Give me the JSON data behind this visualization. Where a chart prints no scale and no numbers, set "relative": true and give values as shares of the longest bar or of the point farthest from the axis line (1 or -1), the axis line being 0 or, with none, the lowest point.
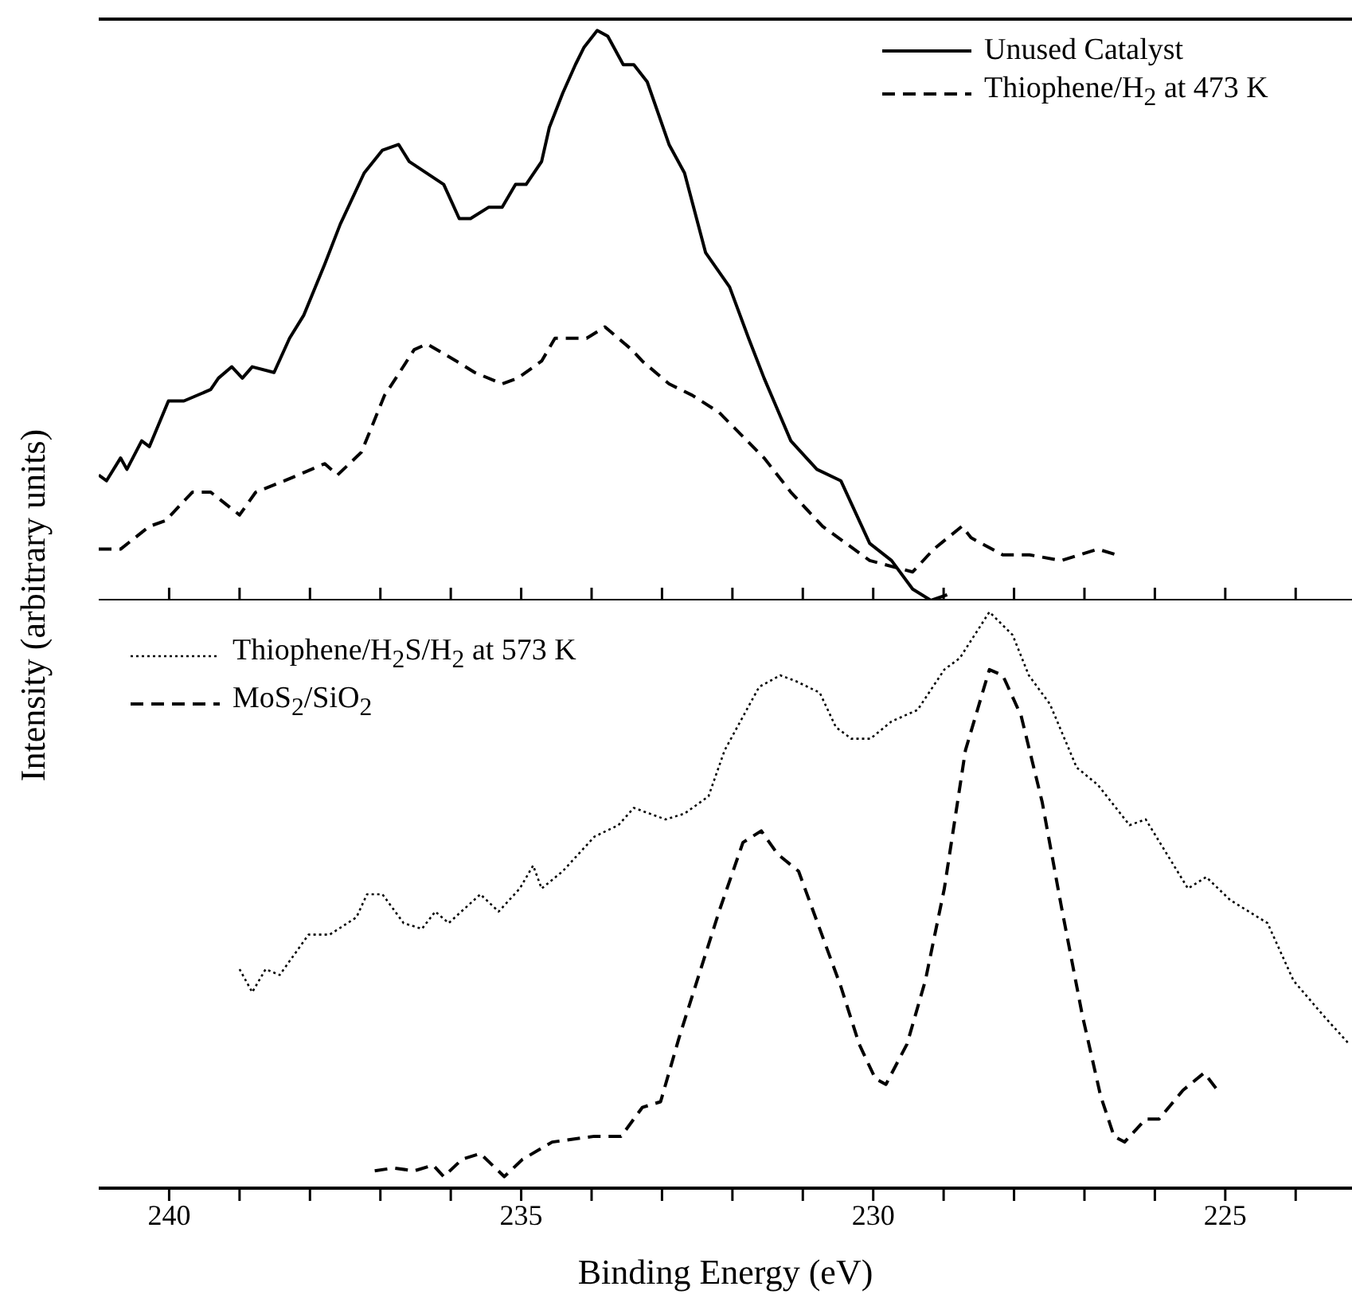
{
  "chart_data": [
    {
      "type": "line",
      "relative": true,
      "ylabel": "Intensity (arbitrary units)",
      "xlim": [
        241,
        223.2
      ],
      "xticks": [
        {
          "value": 240,
          "label": null
        },
        {
          "value": 239,
          "label": null
        },
        {
          "value": 238,
          "label": null
        },
        {
          "value": 237,
          "label": null
        },
        {
          "value": 236,
          "label": null
        },
        {
          "value": 235,
          "label": null
        },
        {
          "value": 234,
          "label": null
        },
        {
          "value": 233,
          "label": null
        },
        {
          "value": 232,
          "label": null
        },
        {
          "value": 231,
          "label": null
        },
        {
          "value": 230,
          "label": null
        },
        {
          "value": 229,
          "label": null
        },
        {
          "value": 228,
          "label": null
        },
        {
          "value": 227,
          "label": null
        },
        {
          "value": 226,
          "label": null
        },
        {
          "value": 225,
          "label": null
        },
        {
          "value": 224,
          "label": null
        }
      ],
      "tick_labels": false,
      "legend": "top right",
      "marker": "none",
      "series": [
        {
          "name": "Unused Catalyst",
          "color": "#000000",
          "line_style": "solid",
          "x": [
            241.0,
            240.89,
            240.69,
            240.6,
            240.39,
            240.28,
            240.01,
            239.79,
            239.41,
            239.3,
            239.11,
            238.96,
            238.82,
            238.51,
            238.29,
            238.09,
            237.79,
            237.57,
            237.23,
            236.97,
            236.74,
            236.59,
            236.1,
            235.88,
            235.72,
            235.46,
            235.27,
            235.08,
            234.93,
            234.71,
            234.6,
            234.41,
            234.23,
            234.11,
            233.92,
            233.77,
            233.55,
            233.4,
            233.21,
            232.9,
            232.68,
            232.38,
            232.04,
            231.77,
            231.55,
            231.17,
            230.8,
            230.46,
            230.05,
            229.74,
            229.44,
            229.18,
            228.95
          ],
          "values": [
            0.22,
            0.21,
            0.25,
            0.23,
            0.28,
            0.27,
            0.35,
            0.35,
            0.37,
            0.39,
            0.41,
            0.39,
            0.41,
            0.4,
            0.46,
            0.5,
            0.59,
            0.66,
            0.75,
            0.79,
            0.8,
            0.77,
            0.73,
            0.67,
            0.67,
            0.69,
            0.69,
            0.73,
            0.73,
            0.77,
            0.83,
            0.89,
            0.94,
            0.97,
            1.0,
            0.99,
            0.94,
            0.94,
            0.91,
            0.8,
            0.75,
            0.61,
            0.55,
            0.46,
            0.39,
            0.28,
            0.23,
            0.21,
            0.1,
            0.07,
            0.02,
            0.0,
            0.01
          ]
        },
        {
          "name": "Thiophene/H$_{2}$ at 473 K",
          "color": "#000000",
          "line_style": "dashed",
          "x": [
            241.0,
            240.69,
            240.28,
            240.05,
            239.67,
            239.41,
            239.0,
            238.77,
            238.36,
            238.17,
            237.79,
            237.61,
            237.27,
            236.94,
            236.78,
            236.52,
            236.34,
            235.92,
            235.66,
            235.27,
            235.05,
            234.71,
            234.52,
            234.07,
            233.81,
            233.43,
            233.28,
            232.9,
            232.57,
            232.19,
            231.55,
            231.17,
            230.72,
            230.05,
            229.44,
            229.14,
            228.74,
            228.61,
            228.16,
            227.78,
            227.33,
            226.81,
            226.54
          ],
          "values": [
            0.09,
            0.09,
            0.13,
            0.14,
            0.19,
            0.19,
            0.15,
            0.19,
            0.21,
            0.22,
            0.24,
            0.22,
            0.26,
            0.36,
            0.39,
            0.44,
            0.45,
            0.42,
            0.4,
            0.38,
            0.39,
            0.42,
            0.46,
            0.46,
            0.48,
            0.44,
            0.42,
            0.38,
            0.36,
            0.33,
            0.25,
            0.19,
            0.13,
            0.07,
            0.05,
            0.09,
            0.13,
            0.11,
            0.08,
            0.08,
            0.07,
            0.09,
            0.08
          ]
        }
      ]
    },
    {
      "type": "line",
      "relative": true,
      "xlabel": "Binding Energy (eV)",
      "xlim": [
        241,
        223.2
      ],
      "xticks": [
        240,
        {
          "value": 239,
          "label": null
        },
        {
          "value": 238,
          "label": null
        },
        {
          "value": 237,
          "label": null
        },
        {
          "value": 236,
          "label": null
        },
        235,
        {
          "value": 234,
          "label": null
        },
        {
          "value": 233,
          "label": null
        },
        {
          "value": 232,
          "label": null
        },
        {
          "value": 231,
          "label": null
        },
        230,
        {
          "value": 229,
          "label": null
        },
        {
          "value": 228,
          "label": null
        },
        {
          "value": 227,
          "label": null
        },
        {
          "value": 226,
          "label": null
        },
        225,
        {
          "value": 224,
          "label": null
        }
      ],
      "tick_labels": "x",
      "legend": "top left",
      "marker": "none",
      "series": [
        {
          "name": "Thiophene/H$_{2}$S/H$_{2}$ at 573 K",
          "color": "#000000",
          "line_style": "dotted",
          "x": [
            239.0,
            238.82,
            238.63,
            238.43,
            238.02,
            237.72,
            237.34,
            237.19,
            236.97,
            236.67,
            236.41,
            236.22,
            236.03,
            235.58,
            235.32,
            235.02,
            234.83,
            234.71,
            234.41,
            233.96,
            233.62,
            233.4,
            232.95,
            232.68,
            232.34,
            232.11,
            231.62,
            231.32,
            231.1,
            230.76,
            230.53,
            230.31,
            230.04,
            229.74,
            229.37,
            228.99,
            228.77,
            228.35,
            228.02,
            227.79,
            227.49,
            227.11,
            226.81,
            226.36,
            226.13,
            225.53,
            225.27,
            224.93,
            224.4,
            224.03,
            223.61,
            223.24
          ],
          "values": [
            0.38,
            0.34,
            0.38,
            0.37,
            0.44,
            0.44,
            0.47,
            0.51,
            0.51,
            0.46,
            0.45,
            0.48,
            0.46,
            0.51,
            0.48,
            0.52,
            0.56,
            0.52,
            0.55,
            0.61,
            0.63,
            0.66,
            0.64,
            0.65,
            0.68,
            0.76,
            0.87,
            0.89,
            0.88,
            0.86,
            0.8,
            0.78,
            0.78,
            0.81,
            0.83,
            0.9,
            0.92,
            1.0,
            0.96,
            0.89,
            0.84,
            0.73,
            0.7,
            0.63,
            0.64,
            0.52,
            0.54,
            0.5,
            0.46,
            0.36,
            0.3,
            0.25
          ]
        },
        {
          "name": "MoS$_{2}$/SiO$_{2}$",
          "color": "#000000",
          "line_style": "dashed",
          "x": [
            237.08,
            236.81,
            236.52,
            236.25,
            236.1,
            235.84,
            235.58,
            235.24,
            234.98,
            234.56,
            233.96,
            233.58,
            233.28,
            233.02,
            232.76,
            232.45,
            232.19,
            231.85,
            231.59,
            231.36,
            231.06,
            230.76,
            230.46,
            230.2,
            229.97,
            229.82,
            229.52,
            229.26,
            228.99,
            228.69,
            228.35,
            228.16,
            227.9,
            227.6,
            227.33,
            227.03,
            226.77,
            226.58,
            226.43,
            226.13,
            225.94,
            225.6,
            225.3,
            225.11
          ],
          "values": [
            0.03,
            0.035,
            0.03,
            0.04,
            0.02,
            0.05,
            0.06,
            0.02,
            0.05,
            0.08,
            0.09,
            0.09,
            0.14,
            0.15,
            0.26,
            0.38,
            0.48,
            0.6,
            0.62,
            0.58,
            0.55,
            0.45,
            0.35,
            0.25,
            0.19,
            0.18,
            0.25,
            0.36,
            0.52,
            0.76,
            0.9,
            0.89,
            0.82,
            0.67,
            0.49,
            0.3,
            0.16,
            0.09,
            0.08,
            0.12,
            0.12,
            0.17,
            0.2,
            0.17
          ]
        }
      ]
    }
  ]
}
